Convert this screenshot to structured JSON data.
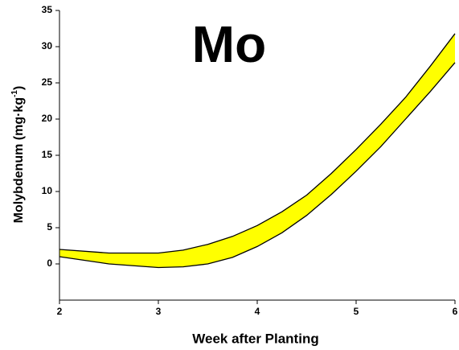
{
  "chart_data": {
    "type": "band",
    "annotation": "Mo",
    "xlabel": "Week after Planting",
    "ylabel_parts": [
      "Molybdenum (mg·kg",
      "-1",
      ")"
    ],
    "x": [
      2,
      2.5,
      3,
      3.25,
      3.5,
      3.75,
      4,
      4.25,
      4.5,
      4.75,
      5,
      5.25,
      5.5,
      5.75,
      6
    ],
    "upper": [
      2.0,
      1.5,
      1.5,
      1.9,
      2.7,
      3.8,
      5.3,
      7.2,
      9.5,
      12.5,
      15.8,
      19.3,
      23.0,
      27.3,
      31.8
    ],
    "lower": [
      1.0,
      0.0,
      -0.5,
      -0.4,
      0.0,
      0.9,
      2.4,
      4.3,
      6.7,
      9.6,
      12.8,
      16.2,
      20.0,
      23.8,
      27.8
    ],
    "color": "#ffff00",
    "xlim": [
      2,
      6
    ],
    "xticks": [
      2,
      3,
      4,
      5,
      6
    ],
    "ylim": [
      -5,
      35
    ],
    "yticks": [
      0,
      5,
      10,
      15,
      20,
      25,
      30,
      35
    ]
  }
}
